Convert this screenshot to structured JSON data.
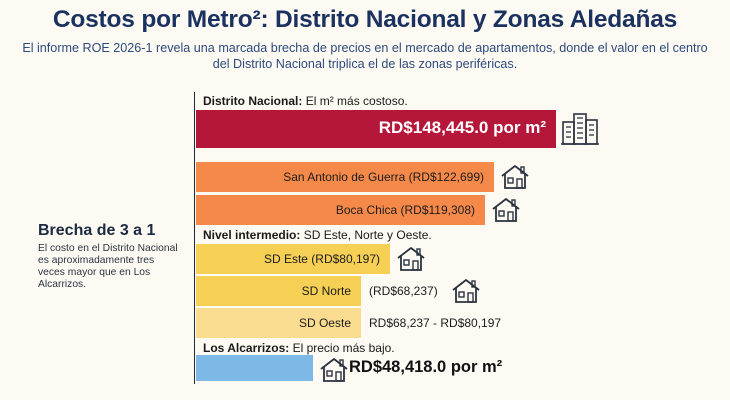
{
  "title": "Costos por Metro²: Distrito Nacional y Zonas Aledañas",
  "subtitle": "El informe ROE 2026-1 revela una marcada brecha de precios en el mercado de apartamentos, donde el valor en el centro del Distrito Nacional triplica el de las zonas periféricas.",
  "side_note": {
    "heading": "Brecha de 3 a 1",
    "body": "El costo en el Distrito Nacional es aproximadamente tres veces mayor que en Los Alcarrizos."
  },
  "groups": {
    "top": {
      "bold": "Distrito Nacional:",
      "text": " El m² más costoso."
    },
    "mid": {
      "bold": "Nivel intermedio:",
      "text": " SD Este, Norte y Oeste."
    },
    "low": {
      "bold": "Los Alcarrizos:",
      "text": " El precio más bajo."
    }
  },
  "colors": {
    "distrito": "#b5173a",
    "orange": "#f5894a",
    "yellow": "#f6cf55",
    "yellow_light": "#f9dc8f",
    "blue": "#7db8e6",
    "icon": "#2b3340"
  },
  "chart_data": {
    "type": "bar",
    "orientation": "horizontal",
    "unit": "RD$ por m²",
    "categories": [
      "Distrito Nacional",
      "San Antonio de Guerra",
      "Boca Chica",
      "SD Este",
      "SD Norte",
      "SD Oeste",
      "Los Alcarrizos"
    ],
    "values": [
      148445.0,
      122699,
      119308,
      80197,
      68237,
      68237,
      48418.0
    ],
    "xlim": [
      0,
      148445
    ],
    "labels": [
      "RD$148,445.0 por m²",
      "San Antonio de Guerra (RD$122,699)",
      "Boca Chica (RD$119,308)",
      "SD Este (RD$80,197)",
      "SD Norte",
      "SD Oeste",
      "RD$48,418.0 por m²"
    ],
    "outside_labels": [
      "",
      "",
      "",
      "",
      "(RD$68,237)",
      "RD$68,237 - RD$80,197",
      ""
    ],
    "icons": [
      "building-icon",
      "house-icon",
      "house-icon",
      "house-icon",
      "house-icon",
      "",
      "house-icon"
    ]
  }
}
